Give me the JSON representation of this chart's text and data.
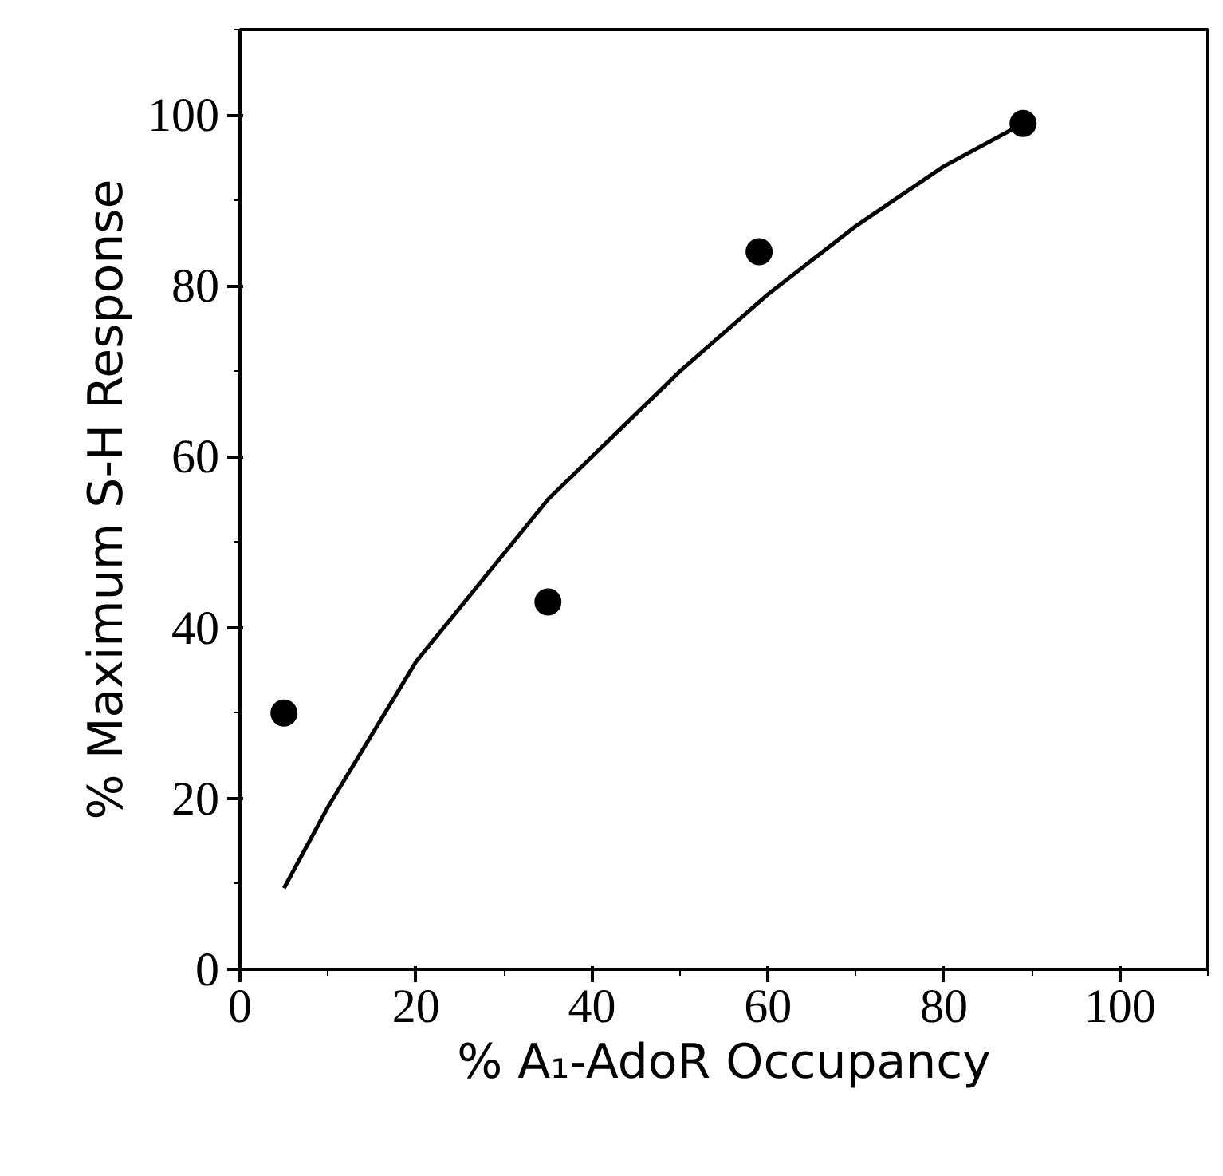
{
  "chart_data": {
    "type": "scatter",
    "xlabel": "% A₁-AdoR Occupancy",
    "ylabel": "% Maximum S-H Response",
    "xlim": [
      0,
      110
    ],
    "ylim": [
      0,
      110
    ],
    "xticks": [
      0,
      20,
      40,
      60,
      80,
      100
    ],
    "yticks": [
      0,
      20,
      40,
      60,
      80,
      100
    ],
    "grid": false,
    "marker": "circle",
    "series": [
      {
        "color": "#000000",
        "x": [
          5,
          35,
          59,
          89
        ],
        "values": [
          30,
          43,
          84,
          99
        ]
      },
      {
        "type": "line",
        "color": "#000000",
        "line_style": "solid",
        "marker": "none",
        "x": [
          5,
          10,
          20,
          35,
          50,
          60,
          70,
          80,
          89
        ],
        "values": [
          9.5,
          19,
          36,
          55,
          70,
          79,
          87,
          94,
          99
        ]
      }
    ]
  }
}
